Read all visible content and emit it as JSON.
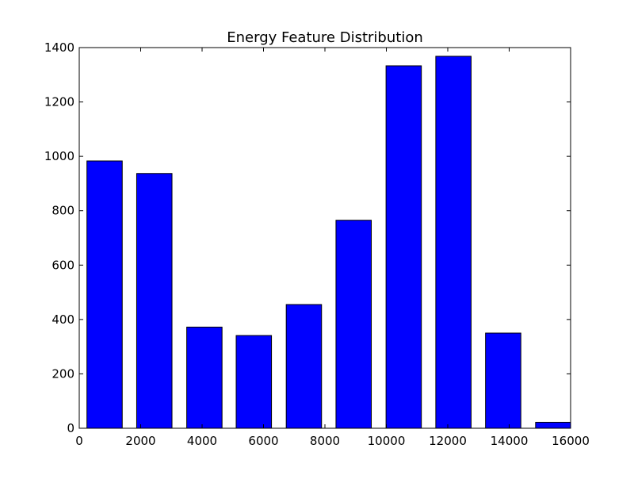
{
  "chart_data": {
    "type": "bar",
    "title": "Energy Feature Distribution",
    "xlabel": "",
    "ylabel": "",
    "xlim": [
      0,
      16000
    ],
    "ylim": [
      0,
      1400
    ],
    "x_ticks": [
      "0",
      "2000",
      "4000",
      "6000",
      "8000",
      "10000",
      "12000",
      "14000",
      "16000"
    ],
    "y_ticks": [
      "0",
      "200",
      "400",
      "600",
      "800",
      "1000",
      "1200",
      "1400"
    ],
    "bar_color": "#0000ff",
    "bars": [
      {
        "x_start": 250,
        "x_end": 1400,
        "value": 983
      },
      {
        "x_start": 1870,
        "x_end": 3020,
        "value": 937
      },
      {
        "x_start": 3500,
        "x_end": 4650,
        "value": 372
      },
      {
        "x_start": 5110,
        "x_end": 6260,
        "value": 341
      },
      {
        "x_start": 6740,
        "x_end": 7890,
        "value": 455
      },
      {
        "x_start": 8360,
        "x_end": 9510,
        "value": 765
      },
      {
        "x_start": 9990,
        "x_end": 11140,
        "value": 1333
      },
      {
        "x_start": 11610,
        "x_end": 12760,
        "value": 1368
      },
      {
        "x_start": 13230,
        "x_end": 14380,
        "value": 350
      },
      {
        "x_start": 14860,
        "x_end": 16000,
        "value": 22
      }
    ],
    "grid": false,
    "legend": "none"
  }
}
